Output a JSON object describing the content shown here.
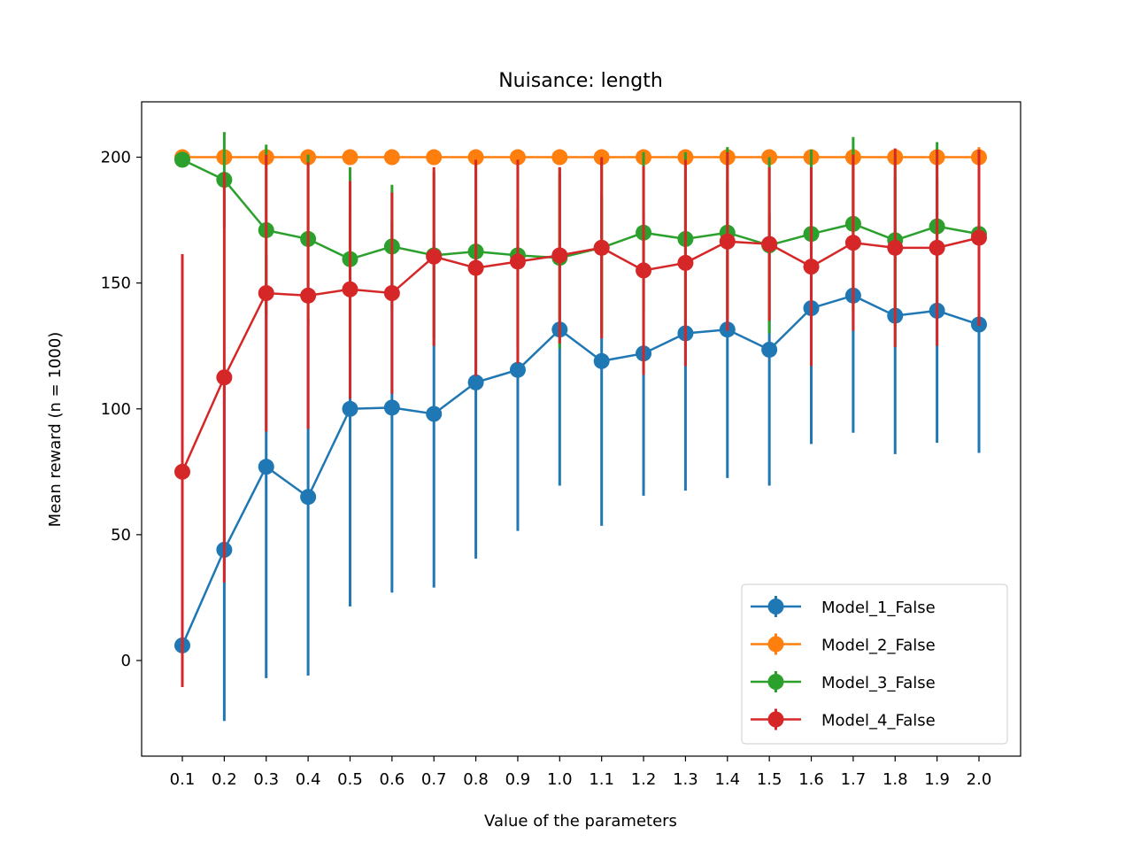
{
  "chart_data": {
    "type": "line",
    "title": "Nuisance: length",
    "xlabel": "Value of the parameters",
    "ylabel": "Mean reward (n = 1000)",
    "categories": [
      "0.1",
      "0.2",
      "0.3",
      "0.4",
      "0.5",
      "0.6",
      "0.7",
      "0.8",
      "0.9",
      "1.0",
      "1.1",
      "1.2",
      "1.3",
      "1.4",
      "1.5",
      "1.6",
      "1.7",
      "1.8",
      "1.9",
      "2.0"
    ],
    "ylim": [
      -38,
      222
    ],
    "yticks": [
      0,
      50,
      100,
      150,
      200
    ],
    "grid": false,
    "legend_position": "lower-right",
    "error_bars": true,
    "series": [
      {
        "name": "Model_1_False",
        "color": "#1f77b4",
        "values": [
          6,
          44,
          77,
          65,
          100,
          100.5,
          98,
          110.5,
          115.5,
          131.5,
          119,
          122,
          130,
          131.5,
          123.5,
          140,
          145,
          137,
          139,
          133.5
        ],
        "err_low": [
          -10.5,
          -24,
          -7,
          -6,
          21.5,
          27,
          29,
          40.5,
          51.5,
          69.5,
          53.5,
          65.5,
          67.5,
          72.5,
          69.5,
          86,
          90.5,
          82,
          86.5,
          82.5
        ],
        "err_high": [
          22.5,
          112,
          161,
          136,
          178.5,
          174,
          167,
          180.5,
          179.5,
          193.5,
          184.5,
          178.5,
          192.5,
          190.5,
          177.5,
          194,
          199.5,
          192,
          191.5,
          184.5
        ]
      },
      {
        "name": "Model_2_False",
        "color": "#ff7f0e",
        "values": [
          200,
          200,
          200,
          200,
          200,
          200,
          200,
          200,
          200,
          200,
          200,
          200,
          200,
          200,
          200,
          200,
          200,
          200,
          200,
          200
        ],
        "err_low": [
          197,
          200,
          200,
          200,
          200,
          200,
          200,
          200,
          200,
          200,
          200,
          200,
          200,
          200,
          200,
          200,
          200,
          197,
          200,
          196
        ],
        "err_high": [
          203,
          200,
          200,
          200,
          200,
          200,
          200,
          200,
          200,
          200,
          200,
          200,
          200,
          200,
          200,
          200,
          200,
          203,
          200,
          204
        ]
      },
      {
        "name": "Model_3_False",
        "color": "#2ca02c",
        "values": [
          199,
          191,
          171,
          167.5,
          159.5,
          164.5,
          161,
          162.5,
          161,
          160,
          164,
          170,
          167.5,
          170,
          165,
          169.5,
          173.5,
          167,
          172.5,
          169.5
        ],
        "err_low": [
          196,
          172,
          137,
          134,
          123,
          140,
          128,
          128,
          125,
          124,
          130,
          138,
          133,
          136,
          130,
          136,
          139,
          133,
          139,
          136
        ],
        "err_high": [
          202,
          210,
          205,
          201,
          196,
          189,
          194,
          197,
          197,
          196,
          198,
          202,
          202,
          204,
          200,
          203,
          208,
          201,
          206,
          203
        ]
      },
      {
        "name": "Model_4_False",
        "color": "#d62728",
        "values": [
          75,
          112.5,
          146,
          145,
          147.5,
          146,
          160.5,
          156,
          158.5,
          161,
          164,
          155,
          158,
          166.5,
          165.5,
          156.5,
          166,
          164,
          164,
          168
        ],
        "err_low": [
          -10.5,
          31,
          91,
          92,
          104,
          106,
          125,
          113,
          118,
          126,
          128,
          113.5,
          117,
          131,
          135,
          117,
          131,
          124.5,
          125,
          133
        ],
        "err_high": [
          161.5,
          194,
          201,
          198,
          190.5,
          186,
          196,
          199,
          199,
          196,
          200,
          196.5,
          199,
          202,
          196,
          196,
          201,
          203.5,
          203,
          203
        ]
      }
    ]
  }
}
